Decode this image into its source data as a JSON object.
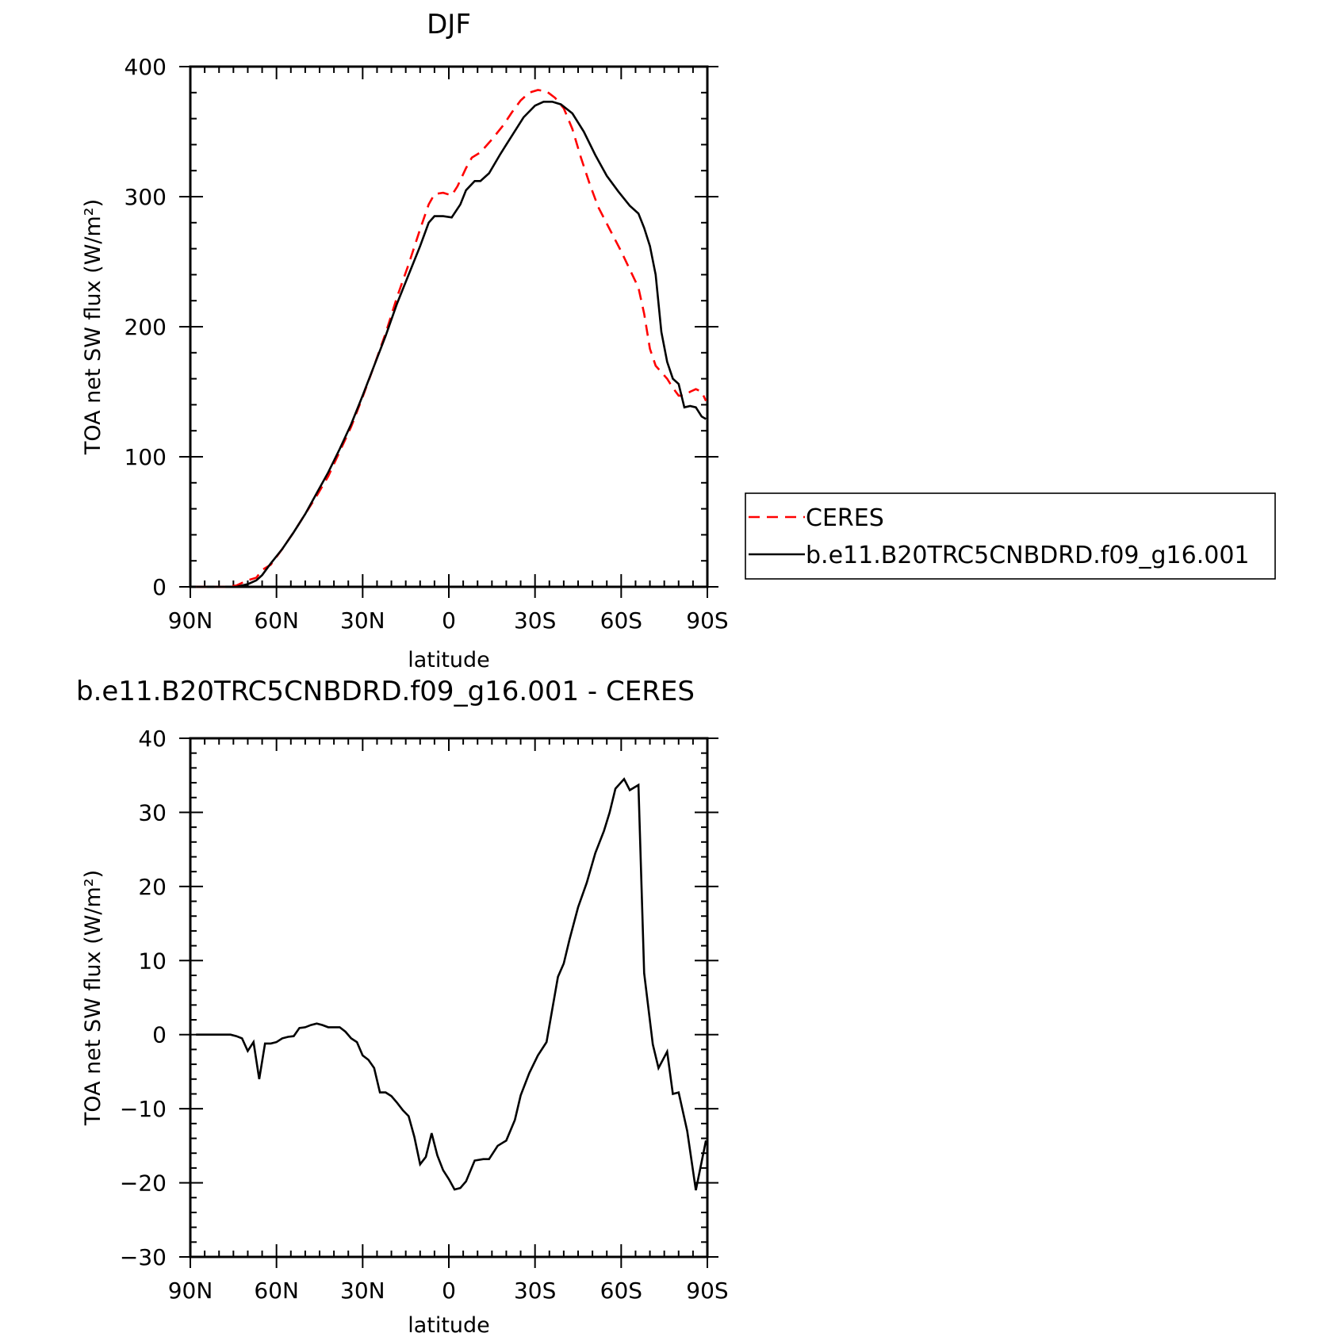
{
  "chart_data": [
    {
      "type": "line",
      "title": "DJF",
      "xlabel": "latitude",
      "ylabel": "TOA net SW flux (W/m²)",
      "xlim": [
        90,
        -90
      ],
      "ylim": [
        0,
        400
      ],
      "x_tick_values": [
        90,
        60,
        30,
        0,
        -30,
        -60,
        -90
      ],
      "x_tick_labels": [
        "90N",
        "60N",
        "30N",
        "0",
        "30S",
        "60S",
        "90S"
      ],
      "y_tick_values": [
        0,
        100,
        200,
        300,
        400
      ],
      "y_tick_labels": [
        "0",
        "100",
        "200",
        "300",
        "400"
      ],
      "legend": "outside-right",
      "grid": false,
      "series": [
        {
          "name": "CERES",
          "color": "#ff0000",
          "style": "dashed",
          "points": [
            [
              88,
              0
            ],
            [
              84,
              0
            ],
            [
              78,
              0
            ],
            [
              74,
              1
            ],
            [
              70,
              5
            ],
            [
              67,
              7
            ],
            [
              65,
              13
            ],
            [
              62,
              17
            ],
            [
              58,
              29
            ],
            [
              54,
              42
            ],
            [
              50,
              56
            ],
            [
              46,
              70
            ],
            [
              42,
              85
            ],
            [
              38,
              104
            ],
            [
              34,
              123
            ],
            [
              30,
              146
            ],
            [
              26,
              170
            ],
            [
              22,
              195
            ],
            [
              18,
              223
            ],
            [
              14,
              248
            ],
            [
              10,
              275
            ],
            [
              7,
              294
            ],
            [
              5,
              302
            ],
            [
              2,
              303
            ],
            [
              -1,
              301
            ],
            [
              -3,
              308
            ],
            [
              -6,
              322
            ],
            [
              -8,
              330
            ],
            [
              -11,
              334
            ],
            [
              -15,
              344
            ],
            [
              -19,
              355
            ],
            [
              -22,
              365
            ],
            [
              -25,
              374
            ],
            [
              -28,
              380
            ],
            [
              -31,
              382
            ],
            [
              -34,
              381
            ],
            [
              -37,
              376
            ],
            [
              -40,
              368
            ],
            [
              -43,
              352
            ],
            [
              -46,
              330
            ],
            [
              -49,
              310
            ],
            [
              -52,
              292
            ],
            [
              -56,
              275
            ],
            [
              -60,
              258
            ],
            [
              -63,
              244
            ],
            [
              -66,
              230
            ],
            [
              -68,
              210
            ],
            [
              -70,
              183
            ],
            [
              -72,
              170
            ],
            [
              -74,
              165
            ],
            [
              -76,
              160
            ],
            [
              -78,
              153
            ],
            [
              -80,
              147
            ],
            [
              -82,
              147
            ],
            [
              -84,
              150
            ],
            [
              -86,
              152
            ],
            [
              -88,
              150
            ],
            [
              -89.5,
              143
            ]
          ]
        },
        {
          "name": "b.e11.B20TRC5CNBDRD.f09_g16.001",
          "color": "#000000",
          "style": "solid",
          "points": [
            [
              88,
              0
            ],
            [
              84,
              0
            ],
            [
              78,
              0
            ],
            [
              74,
              0
            ],
            [
              70,
              2
            ],
            [
              67,
              5
            ],
            [
              65,
              9
            ],
            [
              62,
              18
            ],
            [
              58,
              29
            ],
            [
              54,
              42
            ],
            [
              50,
              56
            ],
            [
              46,
              72
            ],
            [
              42,
              88
            ],
            [
              38,
              106
            ],
            [
              34,
              125
            ],
            [
              30,
              147
            ],
            [
              26,
              170
            ],
            [
              22,
              193
            ],
            [
              18,
              218
            ],
            [
              14,
              240
            ],
            [
              10,
              262
            ],
            [
              7,
              280
            ],
            [
              5,
              285
            ],
            [
              2,
              285
            ],
            [
              -1,
              284
            ],
            [
              -4,
              294
            ],
            [
              -6,
              305
            ],
            [
              -9,
              312
            ],
            [
              -11,
              312
            ],
            [
              -14,
              318
            ],
            [
              -18,
              333
            ],
            [
              -22,
              347
            ],
            [
              -26,
              361
            ],
            [
              -30,
              370
            ],
            [
              -33,
              373
            ],
            [
              -36,
              373
            ],
            [
              -39,
              371
            ],
            [
              -43,
              364
            ],
            [
              -47,
              350
            ],
            [
              -51,
              332
            ],
            [
              -55,
              316
            ],
            [
              -59,
              304
            ],
            [
              -63,
              293
            ],
            [
              -66,
              287
            ],
            [
              -68,
              276
            ],
            [
              -70,
              262
            ],
            [
              -72,
              240
            ],
            [
              -74,
              196
            ],
            [
              -76,
              173
            ],
            [
              -78,
              160
            ],
            [
              -80,
              156
            ],
            [
              -82,
              138
            ],
            [
              -84,
              139
            ],
            [
              -86,
              138
            ],
            [
              -88,
              131
            ],
            [
              -89.5,
              129
            ]
          ]
        }
      ]
    },
    {
      "type": "line",
      "title": "b.e11.B20TRC5CNBDRD.f09_g16.001 - CERES",
      "xlabel": "latitude",
      "ylabel": "TOA net SW flux (W/m²)",
      "xlim": [
        90,
        -90
      ],
      "ylim": [
        -30,
        40
      ],
      "x_tick_values": [
        90,
        60,
        30,
        0,
        -30,
        -60,
        -90
      ],
      "x_tick_labels": [
        "90N",
        "60N",
        "30N",
        "0",
        "30S",
        "60S",
        "90S"
      ],
      "y_tick_values": [
        -30,
        -20,
        -10,
        0,
        10,
        20,
        30,
        40
      ],
      "y_tick_labels": [
        "−30",
        "−20",
        "−10",
        "0",
        "10",
        "20",
        "30",
        "40"
      ],
      "grid": false,
      "series": [
        {
          "color": "#000000",
          "style": "solid",
          "points": [
            [
              88,
              0
            ],
            [
              84,
              0
            ],
            [
              80,
              0
            ],
            [
              76,
              0
            ],
            [
              74,
              -0.2
            ],
            [
              72,
              -0.5
            ],
            [
              70,
              -2.2
            ],
            [
              68,
              -1
            ],
            [
              66,
              -6
            ],
            [
              64,
              -1.2
            ],
            [
              62,
              -1.2
            ],
            [
              60,
              -1
            ],
            [
              58,
              -0.5
            ],
            [
              56,
              -0.3
            ],
            [
              54,
              -0.2
            ],
            [
              52,
              0.9
            ],
            [
              50,
              1
            ],
            [
              48,
              1.3
            ],
            [
              46,
              1.5
            ],
            [
              44,
              1.3
            ],
            [
              42,
              1
            ],
            [
              40,
              1
            ],
            [
              38,
              1
            ],
            [
              36,
              0.4
            ],
            [
              34,
              -0.5
            ],
            [
              32,
              -1
            ],
            [
              30,
              -2.8
            ],
            [
              28,
              -3.4
            ],
            [
              26,
              -4.5
            ],
            [
              24,
              -7.8
            ],
            [
              22,
              -7.8
            ],
            [
              20,
              -8.3
            ],
            [
              18,
              -9.2
            ],
            [
              16,
              -10.2
            ],
            [
              14,
              -11
            ],
            [
              12,
              -13.8
            ],
            [
              10,
              -17.5
            ],
            [
              8,
              -16.5
            ],
            [
              6,
              -13.3
            ],
            [
              4,
              -16.3
            ],
            [
              2,
              -18.3
            ],
            [
              0,
              -19.5
            ],
            [
              -2,
              -20.9
            ],
            [
              -4,
              -20.7
            ],
            [
              -6,
              -19.8
            ],
            [
              -9,
              -17
            ],
            [
              -12,
              -16.8
            ],
            [
              -14,
              -16.8
            ],
            [
              -17,
              -15
            ],
            [
              -20,
              -14.3
            ],
            [
              -23,
              -11.5
            ],
            [
              -25,
              -8.2
            ],
            [
              -28,
              -5.2
            ],
            [
              -31,
              -2.8
            ],
            [
              -34,
              -1
            ],
            [
              -36,
              3.4
            ],
            [
              -38,
              7.8
            ],
            [
              -40,
              9.6
            ],
            [
              -42,
              12.8
            ],
            [
              -45,
              17.2
            ],
            [
              -48,
              20.5
            ],
            [
              -51,
              24.5
            ],
            [
              -54,
              27.5
            ],
            [
              -56,
              30
            ],
            [
              -58,
              33.2
            ],
            [
              -61,
              34.5
            ],
            [
              -63,
              33
            ],
            [
              -66,
              33.7
            ],
            [
              -68,
              8.3
            ],
            [
              -71,
              -1.3
            ],
            [
              -73,
              -4.5
            ],
            [
              -76,
              -2.3
            ],
            [
              -78,
              -8
            ],
            [
              -80,
              -7.8
            ],
            [
              -83,
              -13
            ],
            [
              -86,
              -21
            ],
            [
              -89.5,
              -14.3
            ]
          ]
        }
      ]
    }
  ],
  "legend": {
    "entries": [
      {
        "label": "CERES",
        "color": "#ff0000",
        "style": "dashed"
      },
      {
        "label": "b.e11.B20TRC5CNBDRD.f09_g16.001",
        "color": "#000000",
        "style": "solid"
      }
    ]
  }
}
